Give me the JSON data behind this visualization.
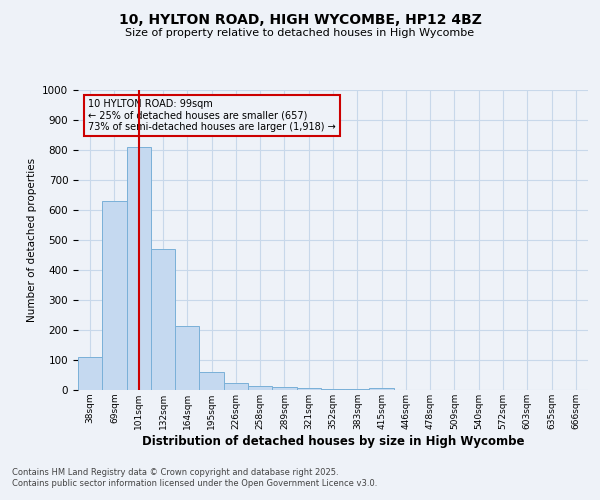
{
  "title1": "10, HYLTON ROAD, HIGH WYCOMBE, HP12 4BZ",
  "title2": "Size of property relative to detached houses in High Wycombe",
  "xlabel": "Distribution of detached houses by size in High Wycombe",
  "ylabel": "Number of detached properties",
  "categories": [
    "38sqm",
    "69sqm",
    "101sqm",
    "132sqm",
    "164sqm",
    "195sqm",
    "226sqm",
    "258sqm",
    "289sqm",
    "321sqm",
    "352sqm",
    "383sqm",
    "415sqm",
    "446sqm",
    "478sqm",
    "509sqm",
    "540sqm",
    "572sqm",
    "603sqm",
    "635sqm",
    "666sqm"
  ],
  "values": [
    110,
    630,
    810,
    470,
    215,
    60,
    25,
    15,
    10,
    8,
    5,
    5,
    8,
    0,
    0,
    0,
    0,
    0,
    0,
    0,
    0
  ],
  "bar_color": "#c5d9f0",
  "bar_edge_color": "#7ab0d8",
  "red_line_index": 2,
  "ylim": [
    0,
    1000
  ],
  "yticks": [
    0,
    100,
    200,
    300,
    400,
    500,
    600,
    700,
    800,
    900,
    1000
  ],
  "annotation_title": "10 HYLTON ROAD: 99sqm",
  "annotation_line1": "← 25% of detached houses are smaller (657)",
  "annotation_line2": "73% of semi-detached houses are larger (1,918) →",
  "annotation_color": "#cc0000",
  "background_color": "#eef2f8",
  "grid_color": "#c8d8ea",
  "footer1": "Contains HM Land Registry data © Crown copyright and database right 2025.",
  "footer2": "Contains public sector information licensed under the Open Government Licence v3.0."
}
